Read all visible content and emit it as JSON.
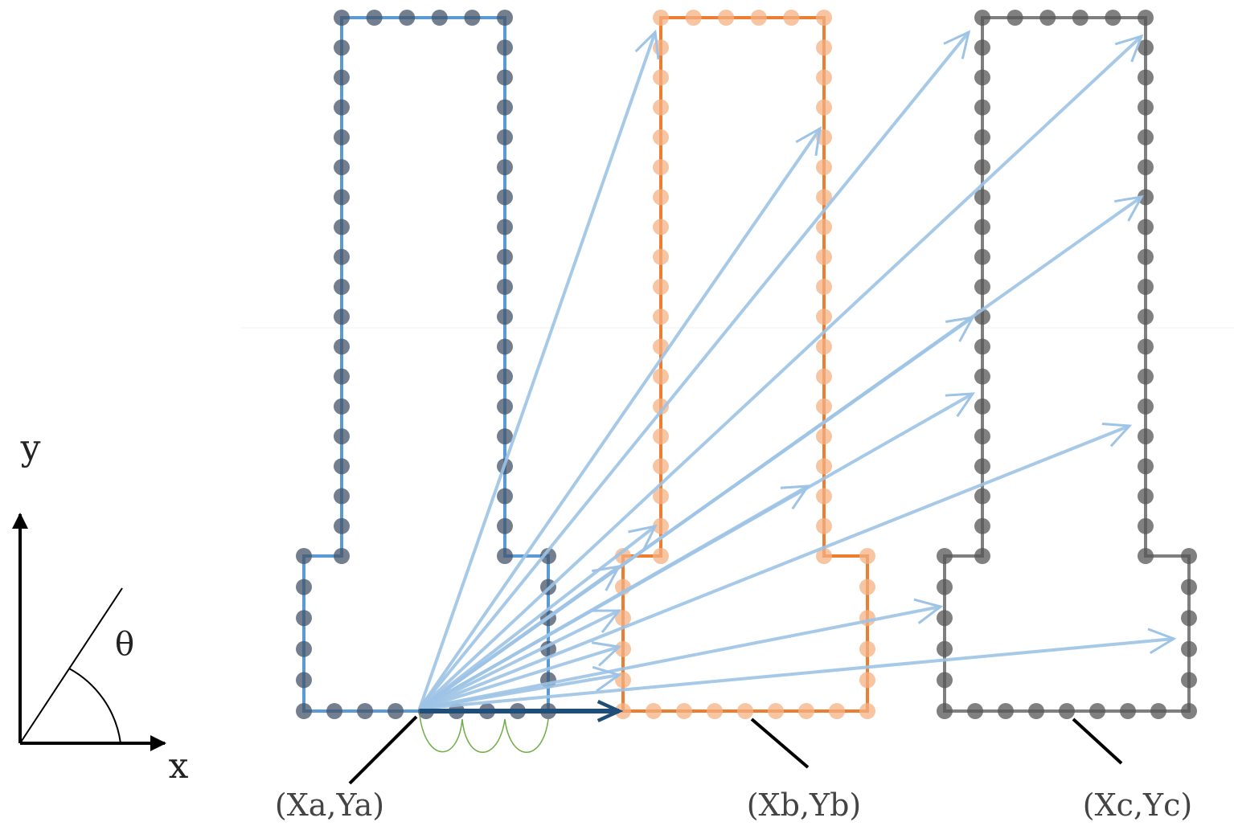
{
  "labels": {
    "y_axis": "y",
    "x_axis": "x",
    "theta": "θ",
    "point_a": "(Xa,Ya)",
    "point_b": "(Xb,Yb)",
    "point_c": "(Xc,Yc)"
  }
}
